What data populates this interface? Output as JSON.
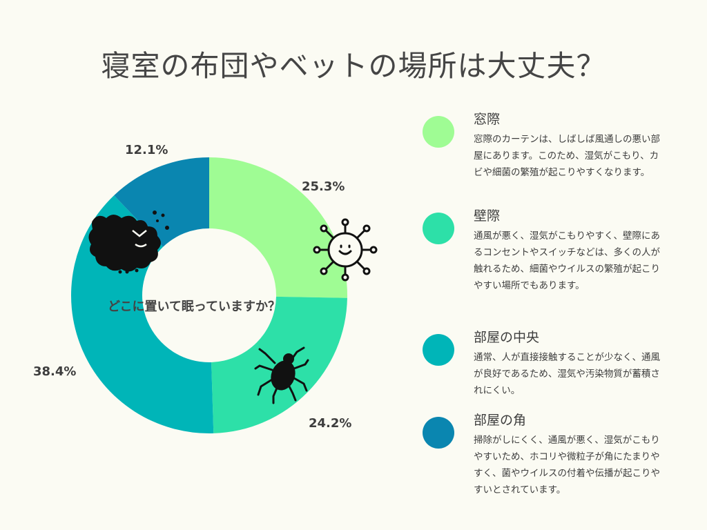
{
  "title": "寝室の布団やベットの場所は大丈夫？",
  "center_question": "どこに置いて眠っていますか？",
  "chart_data": {
    "type": "pie",
    "title": "寝室の布団やベットの場所は大丈夫？",
    "categories": [
      "窓際",
      "壁際",
      "部屋の中央",
      "部屋の角"
    ],
    "values": [
      25.3,
      24.2,
      38.4,
      12.1
    ],
    "labels": [
      "25.3%",
      "24.2%",
      "38.4%",
      "12.1%"
    ],
    "colors": [
      "#9ffc94",
      "#2de0a8",
      "#00b5b8",
      "#0a86b0"
    ],
    "legend_position": "right"
  },
  "legend": [
    {
      "name": "窓際",
      "color": "#9ffc94",
      "desc": "窓際のカーテンは、しばしば風通しの悪い部屋にあります。このため、湿気がこもり、カビや細菌の繁殖が起こりやすくなります。"
    },
    {
      "name": "壁際",
      "color": "#2de0a8",
      "desc": "通風が悪く、湿気がこもりやすく、壁際にあるコンセントやスイッチなどは、多くの人が触れるため、細菌やウイルスの繁殖が起こりやすい場所でもあります。"
    },
    {
      "name": "部屋の中央",
      "color": "#00b5b8",
      "desc": "通常、人が直接接触することが少なく、通風が良好であるため、湿気や汚染物質が蓄積されにくい。"
    },
    {
      "name": "部屋の角",
      "color": "#0a86b0",
      "desc": "掃除がしにくく、通風が悪く、湿気がこもりやすいため、ホコリや微粒子が角にたまりやすく、菌やウイルスの付着や伝播が起こりやすいとされています。"
    }
  ],
  "icons": [
    "virus-icon",
    "germ-monster-icon",
    "tick-icon"
  ]
}
